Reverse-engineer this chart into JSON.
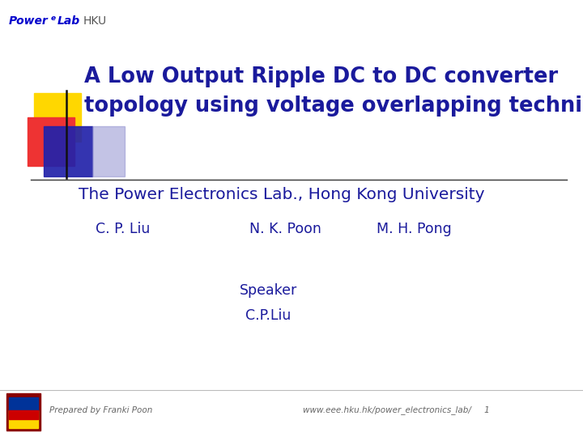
{
  "background_color": "#ffffff",
  "title_line1": "A Low Output Ripple DC to DC converter",
  "title_line2": "topology using voltage overlapping technique",
  "title_color": "#1a1a9c",
  "subtitle": "The Power Electronics Lab., Hong Kong University",
  "subtitle_color": "#1a1a9c",
  "author1": "C. P. Liu",
  "author2": "N. K. Poon",
  "author3": "M. H. Pong",
  "authors_color": "#1a1a9c",
  "speaker_label": "Speaker",
  "speaker_name": "C.P.Liu",
  "speaker_color": "#1a1a9c",
  "footer_left": "Prepared by Franki Poon",
  "footer_right": "www.eee.hku.hk/power_electronics_lab/     1",
  "footer_color": "#666666",
  "logo_power": "Power",
  "logo_e": "e",
  "logo_lab": "Lab",
  "logo_hku": "HKU",
  "logo_blue": "#0000cc",
  "logo_hku_color": "#555555",
  "sq_yellow": "#FFD700",
  "sq_red": "#EE3333",
  "sq_blue": "#2222aa",
  "sq_blue_fade": "#8888cc",
  "vline_color": "#111111",
  "hline_color": "#333333"
}
